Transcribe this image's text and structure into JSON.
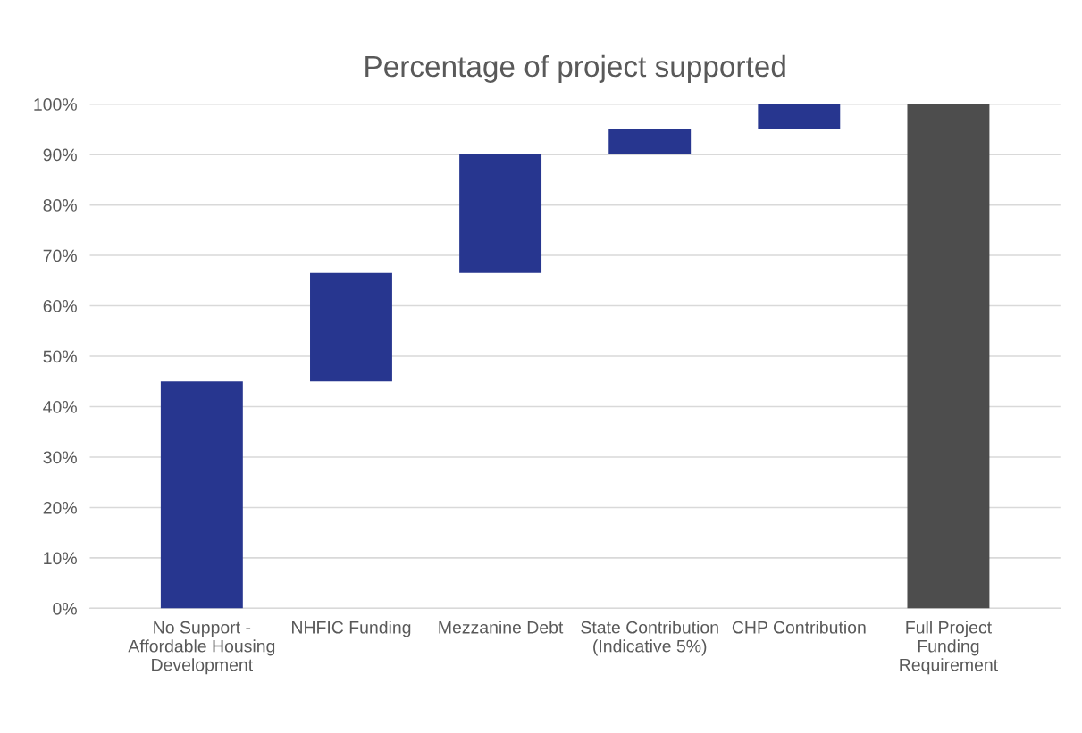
{
  "chart_data": {
    "type": "bar",
    "title": "Percentage of project supported",
    "categories": [
      "No Support - Affordable Housing Development",
      "NHFIC Funding",
      "Mezzanine Debt",
      "State Contribution (Indicative 5%)",
      "CHP Contribution",
      "Full Project Funding Requirement"
    ],
    "values": [
      45,
      21.5,
      23.5,
      5,
      5,
      100
    ],
    "base": [
      0,
      45,
      66.5,
      90,
      95,
      0
    ],
    "colors": [
      "#27368f",
      "#27368f",
      "#27368f",
      "#27368f",
      "#27368f",
      "#4d4d4d"
    ],
    "ylim": [
      0,
      100
    ],
    "yticks": [
      {
        "value": 0,
        "label": "0%"
      },
      {
        "value": 10,
        "label": "10%"
      },
      {
        "value": 20,
        "label": "20%"
      },
      {
        "value": 30,
        "label": "30%"
      },
      {
        "value": 40,
        "label": "40%"
      },
      {
        "value": 50,
        "label": "50%"
      },
      {
        "value": 60,
        "label": "60%"
      },
      {
        "value": 70,
        "label": "70%"
      },
      {
        "value": 80,
        "label": "80%"
      },
      {
        "value": 90,
        "label": "90%"
      },
      {
        "value": 100,
        "label": "100%"
      }
    ],
    "grid": "y",
    "legend": false
  }
}
